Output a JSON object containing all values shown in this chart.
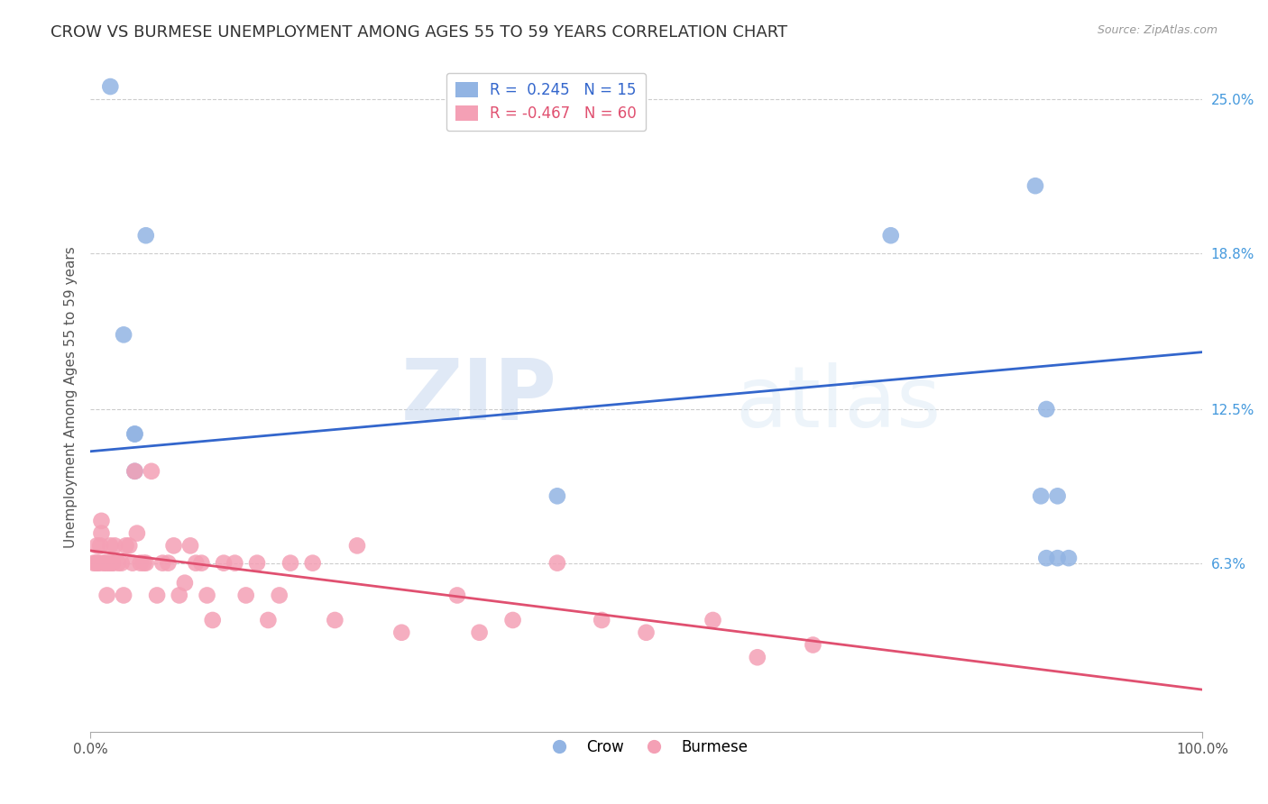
{
  "title": "CROW VS BURMESE UNEMPLOYMENT AMONG AGES 55 TO 59 YEARS CORRELATION CHART",
  "source": "Source: ZipAtlas.com",
  "ylabel": "Unemployment Among Ages 55 to 59 years",
  "xlabel": "",
  "xlim": [
    0.0,
    1.0
  ],
  "ylim": [
    -0.005,
    0.265
  ],
  "xtick_labels": [
    "0.0%",
    "100.0%"
  ],
  "ytick_positions": [
    0.063,
    0.125,
    0.188,
    0.25
  ],
  "ytick_labels": [
    "6.3%",
    "12.5%",
    "18.8%",
    "25.0%"
  ],
  "crow_R": 0.245,
  "crow_N": 15,
  "burmese_R": -0.467,
  "burmese_N": 60,
  "crow_color": "#92b4e3",
  "burmese_color": "#f4a0b5",
  "crow_line_color": "#3366cc",
  "burmese_line_color": "#e05070",
  "background_color": "#ffffff",
  "grid_color": "#cccccc",
  "crow_x": [
    0.018,
    0.03,
    0.04,
    0.04,
    0.04,
    0.05,
    0.42,
    0.72,
    0.85,
    0.855,
    0.86,
    0.86,
    0.87,
    0.87,
    0.88
  ],
  "crow_y": [
    0.255,
    0.155,
    0.115,
    0.115,
    0.1,
    0.195,
    0.09,
    0.195,
    0.215,
    0.09,
    0.065,
    0.125,
    0.09,
    0.065,
    0.065
  ],
  "burmese_x": [
    0.003,
    0.005,
    0.006,
    0.007,
    0.008,
    0.009,
    0.01,
    0.01,
    0.012,
    0.013,
    0.015,
    0.016,
    0.017,
    0.018,
    0.02,
    0.02,
    0.022,
    0.025,
    0.028,
    0.03,
    0.032,
    0.035,
    0.038,
    0.04,
    0.042,
    0.045,
    0.048,
    0.05,
    0.055,
    0.06,
    0.065,
    0.07,
    0.075,
    0.08,
    0.085,
    0.09,
    0.095,
    0.1,
    0.105,
    0.11,
    0.12,
    0.13,
    0.14,
    0.15,
    0.16,
    0.17,
    0.18,
    0.2,
    0.22,
    0.24,
    0.28,
    0.33,
    0.35,
    0.38,
    0.42,
    0.46,
    0.5,
    0.56,
    0.6,
    0.65
  ],
  "burmese_y": [
    0.063,
    0.063,
    0.07,
    0.063,
    0.063,
    0.07,
    0.075,
    0.08,
    0.063,
    0.063,
    0.05,
    0.063,
    0.063,
    0.07,
    0.063,
    0.063,
    0.07,
    0.063,
    0.063,
    0.05,
    0.07,
    0.07,
    0.063,
    0.1,
    0.075,
    0.063,
    0.063,
    0.063,
    0.1,
    0.05,
    0.063,
    0.063,
    0.07,
    0.05,
    0.055,
    0.07,
    0.063,
    0.063,
    0.05,
    0.04,
    0.063,
    0.063,
    0.05,
    0.063,
    0.04,
    0.05,
    0.063,
    0.063,
    0.04,
    0.07,
    0.035,
    0.05,
    0.035,
    0.04,
    0.063,
    0.04,
    0.035,
    0.04,
    0.025,
    0.03
  ],
  "crow_trend_x": [
    0.0,
    1.0
  ],
  "crow_trend_y": [
    0.108,
    0.148
  ],
  "burmese_trend_x": [
    0.0,
    1.0
  ],
  "burmese_trend_y": [
    0.068,
    0.012
  ],
  "watermark_main": "ZIP",
  "watermark_sub": "atlas",
  "title_fontsize": 13,
  "axis_label_fontsize": 11,
  "tick_fontsize": 11,
  "legend_fontsize": 12
}
